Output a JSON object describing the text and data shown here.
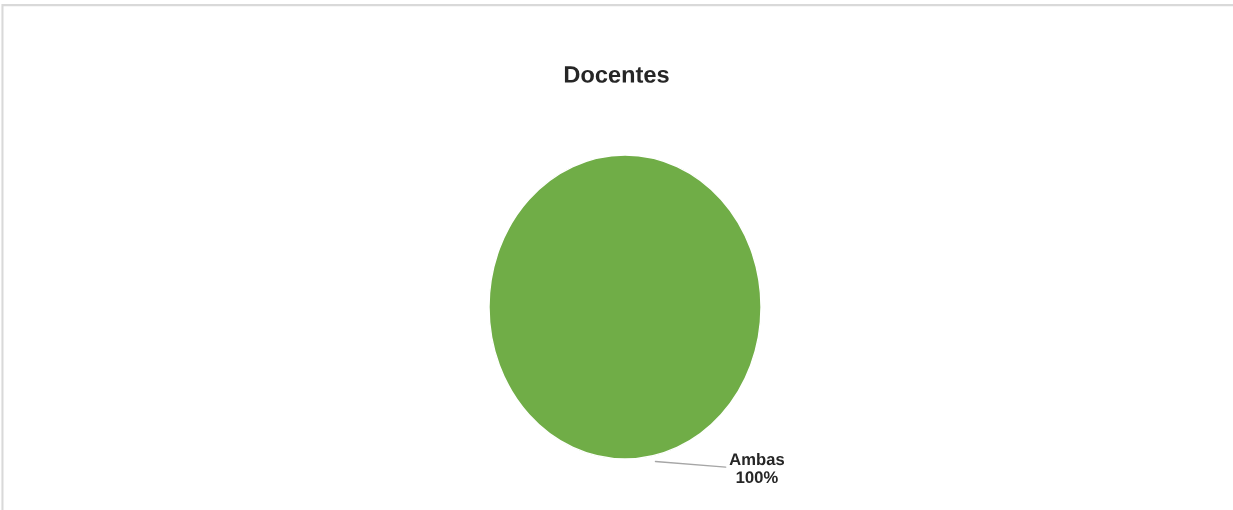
{
  "chart_data": {
    "type": "pie",
    "title": "Docentes",
    "categories": [
      "Ambas"
    ],
    "values": [
      100
    ],
    "colors": [
      "#70ad47"
    ],
    "value_labels": [
      "100%"
    ],
    "legend": false
  }
}
